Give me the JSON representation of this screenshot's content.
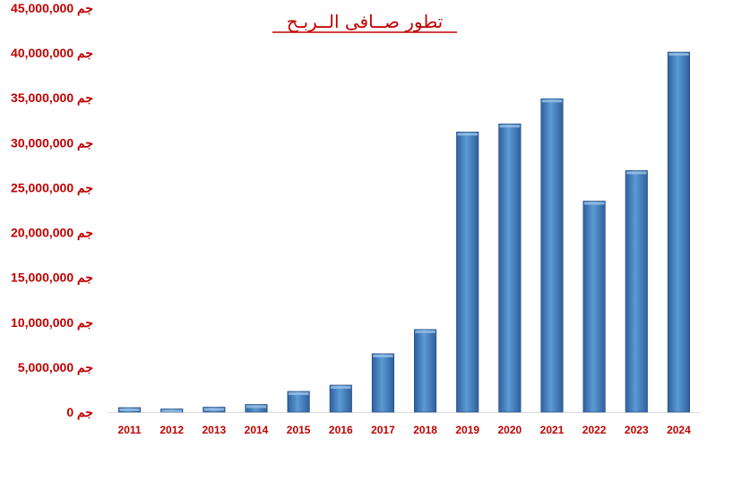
{
  "chart_data": {
    "type": "bar",
    "title": "تطور صــافى الــربـح",
    "categories": [
      "2011",
      "2012",
      "2013",
      "2014",
      "2015",
      "2016",
      "2017",
      "2018",
      "2019",
      "2020",
      "2021",
      "2022",
      "2023",
      "2024"
    ],
    "values": [
      500000,
      350000,
      550000,
      850000,
      2300000,
      3000000,
      6500000,
      9200000,
      31200000,
      32100000,
      34900000,
      23500000,
      26900000,
      40100000
    ],
    "ylim": [
      0,
      45000000
    ],
    "ytick_values": [
      0,
      5000000,
      10000000,
      15000000,
      20000000,
      25000000,
      30000000,
      35000000,
      40000000,
      45000000
    ],
    "ytick_labels": [
      "0 جم",
      "5,000,000 جم",
      "10,000,000 جم",
      "15,000,000 جم",
      "20,000,000 جم",
      "25,000,000 جم",
      "30,000,000 جم",
      "35,000,000 جم",
      "40,000,000 جم",
      "45,000,000 جم"
    ],
    "grid": false,
    "legend": "none",
    "colors": {
      "bar_light": "#5b9bd5",
      "bar_dark": "#2e5f9e",
      "bar_edge": "#1f497d",
      "label": "#c00000",
      "axis": "#d9d9d9"
    }
  }
}
